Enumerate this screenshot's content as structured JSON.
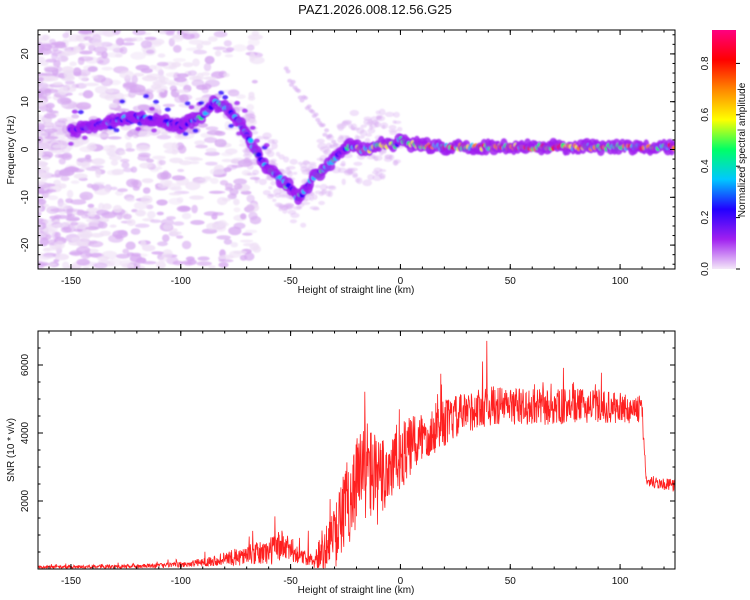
{
  "title": "PAZ1.2026.008.12.56.G25",
  "chart_data": [
    {
      "type": "heatmap",
      "name": "spectrogram",
      "xlabel": "Height of straight line (km)",
      "ylabel": "Frequency (Hz)",
      "xlim": [
        -165,
        125
      ],
      "ylim": [
        -25,
        25
      ],
      "xticks": [
        -150,
        -100,
        -50,
        0,
        50,
        100
      ],
      "yticks": [
        -20,
        -10,
        0,
        10,
        20
      ],
      "ridge": {
        "x": [
          -148,
          -140,
          -130,
          -120,
          -110,
          -100,
          -90,
          -85,
          -80,
          -75,
          -70,
          -65,
          -60,
          -55,
          -50,
          -47,
          -44,
          -40,
          -37,
          -34,
          -30,
          -26,
          -22,
          -18,
          -14,
          -10,
          -6,
          -2,
          0,
          5,
          10,
          20,
          30,
          40,
          50,
          60,
          70,
          80,
          90,
          100,
          110,
          120,
          125
        ],
        "y": [
          4,
          5,
          6,
          7,
          6,
          5,
          7,
          10,
          9,
          7,
          3,
          -1,
          -4,
          -6,
          -8,
          -10,
          -9,
          -6,
          -5,
          -4,
          -2,
          0,
          1,
          0,
          0,
          1,
          1,
          1,
          2,
          1,
          1,
          0.5,
          0.5,
          0.5,
          0.5,
          0.5,
          0.5,
          0.5,
          0.5,
          0.5,
          0.5,
          0.5,
          0.5
        ]
      },
      "colorbar": {
        "label": "Normalized spectral amplitude",
        "range": [
          0,
          0.93
        ],
        "ticks": [
          0.0,
          0.2,
          0.4,
          0.6,
          0.8
        ],
        "tick_labels": [
          "0.0",
          "0.2",
          "0.4",
          "0.6",
          "0.8"
        ],
        "colors": [
          "#f4e8f8",
          "#a020f0",
          "#2200ff",
          "#00c8ff",
          "#00ff66",
          "#ffff00",
          "#ff8800",
          "#ff0000",
          "#ff0080"
        ]
      }
    },
    {
      "type": "line",
      "name": "snr",
      "xlabel": "Height of straight line (km)",
      "ylabel": "SNR (10 * v/v)",
      "xlim": [
        -165,
        125
      ],
      "ylim": [
        0,
        7000
      ],
      "xticks": [
        -150,
        -100,
        -50,
        0,
        50,
        100
      ],
      "yticks": [
        2000,
        4000,
        6000
      ],
      "color": "#ff2020",
      "envelope": {
        "x": [
          -165,
          -120,
          -100,
          -90,
          -80,
          -70,
          -60,
          -55,
          -50,
          -45,
          -40,
          -35,
          -30,
          -25,
          -20,
          -15,
          -10,
          -5,
          0,
          5,
          10,
          20,
          30,
          40,
          50,
          60,
          70,
          80,
          90,
          100,
          108,
          110,
          112,
          120,
          125
        ],
        "mean": [
          50,
          80,
          120,
          200,
          300,
          400,
          500,
          700,
          550,
          350,
          300,
          500,
          900,
          1800,
          2600,
          3000,
          2500,
          3000,
          3300,
          3600,
          3900,
          4300,
          4600,
          4800,
          4800,
          4750,
          4750,
          4800,
          4800,
          4700,
          4700,
          4600,
          2600,
          2500,
          2450
        ],
        "amplitude": [
          40,
          60,
          80,
          120,
          200,
          300,
          400,
          500,
          350,
          200,
          250,
          600,
          900,
          1300,
          1400,
          1500,
          1300,
          1200,
          1000,
          900,
          800,
          700,
          600,
          600,
          550,
          550,
          550,
          500,
          500,
          450,
          400,
          400,
          200,
          180,
          180
        ],
        "peak": [
          200,
          250,
          300,
          500,
          700,
          1000,
          1750,
          1600,
          1200,
          900,
          1300,
          2200,
          3300,
          5000,
          6100,
          6200,
          5300,
          5600,
          5400,
          5600,
          5900,
          6200,
          6500,
          7000,
          6600,
          6300,
          6200,
          6200,
          6000,
          5800,
          5600,
          5500,
          2900,
          2800,
          2700
        ]
      }
    }
  ]
}
